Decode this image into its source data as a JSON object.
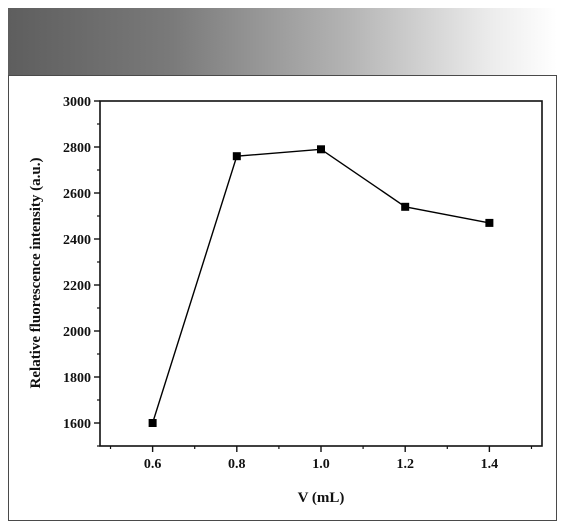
{
  "chart_data": {
    "type": "line",
    "xlabel": "V (mL)",
    "ylabel": "Relative fluorescence intensity (a.u.)",
    "x": [
      0.6,
      0.8,
      1.0,
      1.2,
      1.4
    ],
    "series": [
      {
        "values": [
          1600,
          2760,
          2790,
          2540,
          2470
        ]
      }
    ],
    "xlim": [
      0.475,
      1.525
    ],
    "ylim": [
      1500,
      3000
    ],
    "xticks": [
      "0.6",
      "0.8",
      "1.0",
      "1.2",
      "1.4"
    ],
    "yticks": [
      "1600",
      "1800",
      "2000",
      "2200",
      "2400",
      "2600",
      "2800",
      "3000"
    ],
    "grid": false,
    "marker": "square",
    "color": "#000000"
  }
}
